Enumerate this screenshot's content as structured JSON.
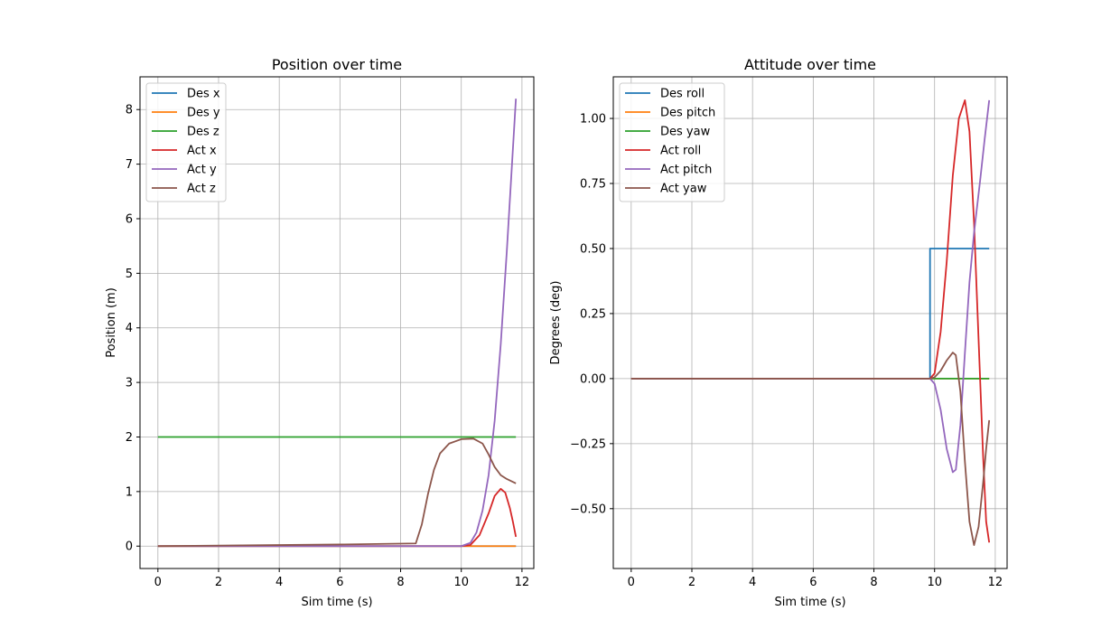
{
  "chart_data": [
    {
      "type": "line",
      "title": "Position over time",
      "xlabel": "Sim time (s)",
      "ylabel": "Position (m)",
      "xlim": [
        -0.59,
        12.39
      ],
      "ylim": [
        -0.41,
        8.6
      ],
      "xticks": [
        0,
        2,
        4,
        6,
        8,
        10,
        12
      ],
      "yticks": [
        0,
        1,
        2,
        3,
        4,
        5,
        6,
        7,
        8
      ],
      "grid": true,
      "legend_position": "top-left",
      "series": [
        {
          "name": "Des x",
          "color": "#1f77b4",
          "points": [
            [
              0,
              0
            ],
            [
              11.8,
              0
            ]
          ]
        },
        {
          "name": "Des y",
          "color": "#ff7f0e",
          "points": [
            [
              0,
              0
            ],
            [
              11.8,
              0
            ]
          ]
        },
        {
          "name": "Des z",
          "color": "#2ca02c",
          "points": [
            [
              0,
              2
            ],
            [
              11.8,
              2
            ]
          ]
        },
        {
          "name": "Act x",
          "color": "#d62728",
          "points": [
            [
              0,
              0
            ],
            [
              10.0,
              0
            ],
            [
              10.3,
              0.02
            ],
            [
              10.6,
              0.2
            ],
            [
              10.9,
              0.6
            ],
            [
              11.1,
              0.92
            ],
            [
              11.3,
              1.05
            ],
            [
              11.45,
              0.98
            ],
            [
              11.6,
              0.7
            ],
            [
              11.7,
              0.45
            ],
            [
              11.8,
              0.17
            ]
          ]
        },
        {
          "name": "Act y",
          "color": "#9467bd",
          "points": [
            [
              0,
              0
            ],
            [
              10.0,
              0
            ],
            [
              10.3,
              0.06
            ],
            [
              10.5,
              0.25
            ],
            [
              10.7,
              0.65
            ],
            [
              10.9,
              1.3
            ],
            [
              11.1,
              2.3
            ],
            [
              11.3,
              3.7
            ],
            [
              11.5,
              5.4
            ],
            [
              11.65,
              6.8
            ],
            [
              11.8,
              8.2
            ]
          ]
        },
        {
          "name": "Act z",
          "color": "#8c564b",
          "points": [
            [
              0,
              0
            ],
            [
              2,
              0.01
            ],
            [
              4,
              0.02
            ],
            [
              6,
              0.03
            ],
            [
              8,
              0.045
            ],
            [
              8.5,
              0.05
            ],
            [
              8.7,
              0.4
            ],
            [
              8.9,
              0.95
            ],
            [
              9.1,
              1.4
            ],
            [
              9.3,
              1.7
            ],
            [
              9.6,
              1.88
            ],
            [
              10.0,
              1.96
            ],
            [
              10.4,
              1.97
            ],
            [
              10.7,
              1.88
            ],
            [
              10.9,
              1.68
            ],
            [
              11.1,
              1.45
            ],
            [
              11.3,
              1.3
            ],
            [
              11.5,
              1.23
            ],
            [
              11.8,
              1.15
            ]
          ]
        }
      ]
    },
    {
      "type": "line",
      "title": "Attitude over time",
      "xlabel": "Sim time (s)",
      "ylabel": "Degrees (deg)",
      "xlim": [
        -0.59,
        12.39
      ],
      "ylim": [
        -0.73,
        1.16
      ],
      "xticks": [
        0,
        2,
        4,
        6,
        8,
        10,
        12
      ],
      "yticks": [
        -0.5,
        -0.25,
        0.0,
        0.25,
        0.5,
        0.75,
        1.0
      ],
      "ytick_labels": [
        "−0.50",
        "−0.25",
        "0.00",
        "0.25",
        "0.50",
        "0.75",
        "1.00"
      ],
      "grid": true,
      "legend_position": "top-left",
      "series": [
        {
          "name": "Des roll",
          "color": "#1f77b4",
          "points": [
            [
              0,
              0
            ],
            [
              9.85,
              0
            ],
            [
              9.85,
              0.5
            ],
            [
              11.8,
              0.5
            ]
          ]
        },
        {
          "name": "Des pitch",
          "color": "#ff7f0e",
          "points": [
            [
              0,
              0
            ],
            [
              11.8,
              0
            ]
          ]
        },
        {
          "name": "Des yaw",
          "color": "#2ca02c",
          "points": [
            [
              0,
              0
            ],
            [
              11.8,
              0
            ]
          ]
        },
        {
          "name": "Act roll",
          "color": "#d62728",
          "points": [
            [
              0,
              0
            ],
            [
              9.85,
              0
            ],
            [
              10.0,
              0.02
            ],
            [
              10.2,
              0.18
            ],
            [
              10.4,
              0.45
            ],
            [
              10.6,
              0.78
            ],
            [
              10.8,
              1.0
            ],
            [
              11.0,
              1.07
            ],
            [
              11.15,
              0.95
            ],
            [
              11.3,
              0.6
            ],
            [
              11.45,
              0.15
            ],
            [
              11.6,
              -0.3
            ],
            [
              11.7,
              -0.55
            ],
            [
              11.8,
              -0.63
            ]
          ]
        },
        {
          "name": "Act pitch",
          "color": "#9467bd",
          "points": [
            [
              0,
              0
            ],
            [
              9.85,
              0
            ],
            [
              10.0,
              -0.02
            ],
            [
              10.2,
              -0.12
            ],
            [
              10.4,
              -0.27
            ],
            [
              10.6,
              -0.36
            ],
            [
              10.7,
              -0.35
            ],
            [
              10.85,
              -0.18
            ],
            [
              11.0,
              0.1
            ],
            [
              11.15,
              0.37
            ],
            [
              11.3,
              0.56
            ],
            [
              11.5,
              0.76
            ],
            [
              11.65,
              0.92
            ],
            [
              11.8,
              1.07
            ]
          ]
        },
        {
          "name": "Act yaw",
          "color": "#8c564b",
          "points": [
            [
              0,
              0
            ],
            [
              9.85,
              0
            ],
            [
              10.0,
              0.005
            ],
            [
              10.2,
              0.03
            ],
            [
              10.4,
              0.07
            ],
            [
              10.6,
              0.1
            ],
            [
              10.7,
              0.09
            ],
            [
              10.85,
              -0.05
            ],
            [
              11.0,
              -0.32
            ],
            [
              11.15,
              -0.55
            ],
            [
              11.3,
              -0.64
            ],
            [
              11.45,
              -0.57
            ],
            [
              11.6,
              -0.4
            ],
            [
              11.7,
              -0.27
            ],
            [
              11.8,
              -0.16
            ]
          ]
        }
      ]
    }
  ]
}
